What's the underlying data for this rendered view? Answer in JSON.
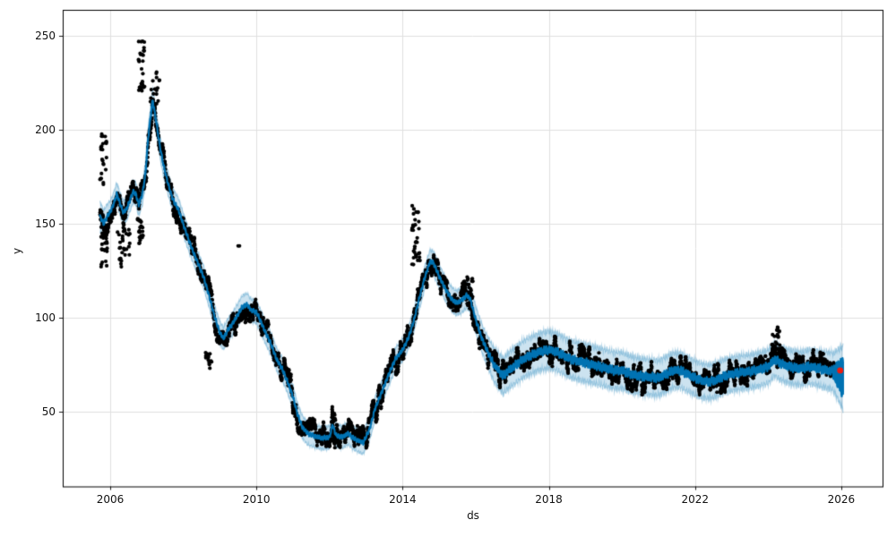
{
  "chart_data": {
    "type": "line",
    "subtype": "prophet-forecast-scatter",
    "title": "",
    "xlabel": "ds",
    "ylabel": "y",
    "grid": true,
    "legend_position": "none",
    "xlim": [
      2004.7,
      2027.13
    ],
    "ylim": [
      10.3,
      263.8
    ],
    "x_ticks": [
      {
        "value": 2006,
        "label": "2006"
      },
      {
        "value": 2010,
        "label": "2010"
      },
      {
        "value": 2014,
        "label": "2014"
      },
      {
        "value": 2018,
        "label": "2018"
      },
      {
        "value": 2022,
        "label": "2022"
      },
      {
        "value": 2026,
        "label": "2026"
      }
    ],
    "y_ticks": [
      {
        "value": 50,
        "label": "50"
      },
      {
        "value": 100,
        "label": "100"
      },
      {
        "value": 150,
        "label": "150"
      },
      {
        "value": 200,
        "label": "200"
      },
      {
        "value": 250,
        "label": "250"
      }
    ],
    "colors": {
      "forecast_line": "#0072B2",
      "uncertainty_band": "#0072B2",
      "uncertainty_alpha": 0.2,
      "band_edge_alpha": 0.32,
      "observed_points": "#000000",
      "highlight_point": "#ee1c10",
      "grid": "#e0e0e0",
      "spine": "#000000",
      "text": "#111111",
      "background": "#ffffff"
    },
    "series": [
      {
        "name": "observed",
        "style": "scatter",
        "marker_radius": 2.1,
        "start": 2005.72,
        "end": 2025.82,
        "points_per_year": 260,
        "ar_phi": 0.93,
        "ar_sigma": 1.5,
        "shock_prob": 0.015,
        "shock_scale": 8,
        "residual_clamp": 8.5
      },
      {
        "name": "yhat",
        "style": "line",
        "line_width": 2.2,
        "keyframes": [
          [
            2005.72,
            154
          ],
          [
            2005.82,
            150
          ],
          [
            2005.92,
            154
          ],
          [
            2006.02,
            157
          ],
          [
            2006.1,
            161
          ],
          [
            2006.18,
            166
          ],
          [
            2006.28,
            160
          ],
          [
            2006.36,
            156
          ],
          [
            2006.45,
            158
          ],
          [
            2006.55,
            163
          ],
          [
            2006.62,
            167
          ],
          [
            2006.7,
            166
          ],
          [
            2006.78,
            160
          ],
          [
            2006.88,
            166
          ],
          [
            2006.96,
            176
          ],
          [
            2007.04,
            196
          ],
          [
            2007.16,
            216
          ],
          [
            2007.26,
            204
          ],
          [
            2007.36,
            191
          ],
          [
            2007.46,
            181
          ],
          [
            2007.56,
            173
          ],
          [
            2007.66,
            166
          ],
          [
            2007.76,
            161
          ],
          [
            2007.86,
            158
          ],
          [
            2007.96,
            152
          ],
          [
            2008.1,
            144
          ],
          [
            2008.25,
            136
          ],
          [
            2008.4,
            129
          ],
          [
            2008.55,
            122
          ],
          [
            2008.7,
            112
          ],
          [
            2008.85,
            101
          ],
          [
            2009.0,
            92
          ],
          [
            2009.1,
            89
          ],
          [
            2009.2,
            93
          ],
          [
            2009.35,
            97
          ],
          [
            2009.5,
            102
          ],
          [
            2009.62,
            106
          ],
          [
            2009.75,
            107
          ],
          [
            2009.85,
            104
          ],
          [
            2010.0,
            103
          ],
          [
            2010.12,
            98
          ],
          [
            2010.25,
            92
          ],
          [
            2010.4,
            86
          ],
          [
            2010.55,
            78
          ],
          [
            2010.7,
            73
          ],
          [
            2010.85,
            66
          ],
          [
            2011.0,
            58
          ],
          [
            2011.12,
            49
          ],
          [
            2011.25,
            42
          ],
          [
            2011.4,
            38.5
          ],
          [
            2011.6,
            37
          ],
          [
            2011.8,
            36
          ],
          [
            2012.0,
            36.5
          ],
          [
            2012.08,
            43
          ],
          [
            2012.18,
            37.5
          ],
          [
            2012.35,
            36.5
          ],
          [
            2012.5,
            38.5
          ],
          [
            2012.65,
            36
          ],
          [
            2012.8,
            34.5
          ],
          [
            2012.92,
            33.5
          ],
          [
            2013.1,
            41
          ],
          [
            2013.25,
            52
          ],
          [
            2013.4,
            59
          ],
          [
            2013.6,
            69
          ],
          [
            2013.8,
            78
          ],
          [
            2014.0,
            83
          ],
          [
            2014.15,
            89
          ],
          [
            2014.3,
            98
          ],
          [
            2014.45,
            110
          ],
          [
            2014.6,
            121
          ],
          [
            2014.75,
            130
          ],
          [
            2014.85,
            129
          ],
          [
            2015.0,
            122
          ],
          [
            2015.15,
            116
          ],
          [
            2015.3,
            111
          ],
          [
            2015.45,
            108
          ],
          [
            2015.6,
            109
          ],
          [
            2015.75,
            112
          ],
          [
            2015.85,
            110
          ],
          [
            2016.0,
            99
          ],
          [
            2016.15,
            90
          ],
          [
            2016.3,
            83
          ],
          [
            2016.5,
            75
          ],
          [
            2016.75,
            69
          ],
          [
            2016.9,
            72
          ],
          [
            2017.1,
            75
          ],
          [
            2017.3,
            78
          ],
          [
            2017.5,
            80
          ],
          [
            2017.75,
            82
          ],
          [
            2018.0,
            83
          ],
          [
            2018.2,
            82
          ],
          [
            2018.4,
            80
          ],
          [
            2018.6,
            78
          ],
          [
            2018.8,
            77
          ],
          [
            2019.0,
            76
          ],
          [
            2019.2,
            75
          ],
          [
            2019.4,
            74
          ],
          [
            2019.6,
            73
          ],
          [
            2019.8,
            72
          ],
          [
            2020.0,
            72
          ],
          [
            2020.25,
            70
          ],
          [
            2020.5,
            69
          ],
          [
            2020.75,
            68.5
          ],
          [
            2021.0,
            68
          ],
          [
            2021.2,
            70
          ],
          [
            2021.4,
            72
          ],
          [
            2021.6,
            72
          ],
          [
            2021.8,
            70
          ],
          [
            2022.0,
            68
          ],
          [
            2022.2,
            66.5
          ],
          [
            2022.4,
            66
          ],
          [
            2022.6,
            67
          ],
          [
            2022.8,
            69
          ],
          [
            2023.0,
            70
          ],
          [
            2023.25,
            71
          ],
          [
            2023.5,
            71.5
          ],
          [
            2023.75,
            72.5
          ],
          [
            2024.0,
            74
          ],
          [
            2024.18,
            78
          ],
          [
            2024.32,
            76
          ],
          [
            2024.5,
            74.5
          ],
          [
            2024.7,
            73.5
          ],
          [
            2024.9,
            73
          ],
          [
            2025.1,
            74
          ],
          [
            2025.3,
            73.5
          ],
          [
            2025.5,
            72.5
          ],
          [
            2025.8,
            71.5
          ]
        ]
      },
      {
        "name": "uncertainty",
        "style": "band",
        "halfwidth_keyframes": [
          [
            2005.72,
            8
          ],
          [
            2006.0,
            6
          ],
          [
            2010.0,
            6
          ],
          [
            2014.0,
            6
          ],
          [
            2015.5,
            6.5
          ],
          [
            2016.2,
            7.5
          ],
          [
            2016.6,
            9.5
          ],
          [
            2017.5,
            10
          ],
          [
            2019.0,
            10
          ],
          [
            2021.0,
            9.5
          ],
          [
            2023.0,
            9
          ],
          [
            2025.0,
            9
          ],
          [
            2025.78,
            10
          ],
          [
            2026.05,
            17
          ]
        ]
      },
      {
        "name": "forecast-tail",
        "style": "dense-line",
        "start": 2025.78,
        "end": 2026.05,
        "center_keyframes": [
          [
            2025.78,
            71
          ],
          [
            2025.9,
            70
          ],
          [
            2026.05,
            68
          ]
        ],
        "osc_amp_keyframes": [
          [
            2025.78,
            2.5
          ],
          [
            2026.05,
            8.5
          ]
        ]
      },
      {
        "name": "latest-forecast-point",
        "style": "point",
        "x": 2025.97,
        "y": 72,
        "radius": 3.4
      }
    ],
    "outlier_clusters": [
      {
        "from": 2005.72,
        "to": 2005.9,
        "lo": 170,
        "hi": 198,
        "n": 24
      },
      {
        "from": 2005.74,
        "to": 2005.92,
        "lo": 127,
        "hi": 150,
        "n": 26
      },
      {
        "from": 2006.2,
        "to": 2006.55,
        "lo": 127,
        "hi": 148,
        "n": 30
      },
      {
        "from": 2006.74,
        "to": 2006.9,
        "lo": 136,
        "hi": 153,
        "n": 22
      },
      {
        "from": 2006.76,
        "to": 2006.94,
        "lo": 220,
        "hi": 250,
        "n": 28
      },
      {
        "from": 2007.1,
        "to": 2007.35,
        "lo": 210,
        "hi": 231,
        "n": 18
      },
      {
        "from": 2008.6,
        "to": 2008.78,
        "lo": 73,
        "hi": 82,
        "n": 14
      },
      {
        "from": 2009.5,
        "to": 2009.55,
        "lo": 137,
        "hi": 139,
        "n": 2
      },
      {
        "from": 2012.04,
        "to": 2012.16,
        "lo": 44,
        "hi": 53,
        "n": 18
      },
      {
        "from": 2014.25,
        "to": 2014.48,
        "lo": 128,
        "hi": 160,
        "n": 34
      },
      {
        "from": 2015.72,
        "to": 2015.92,
        "lo": 106,
        "hi": 122,
        "n": 26
      },
      {
        "from": 2024.1,
        "to": 2024.32,
        "lo": 80,
        "hi": 95,
        "n": 28
      }
    ],
    "wiggle": {
      "amp_early": 1.3,
      "amp_late": 2.6,
      "switch_year": 2016.4
    }
  }
}
